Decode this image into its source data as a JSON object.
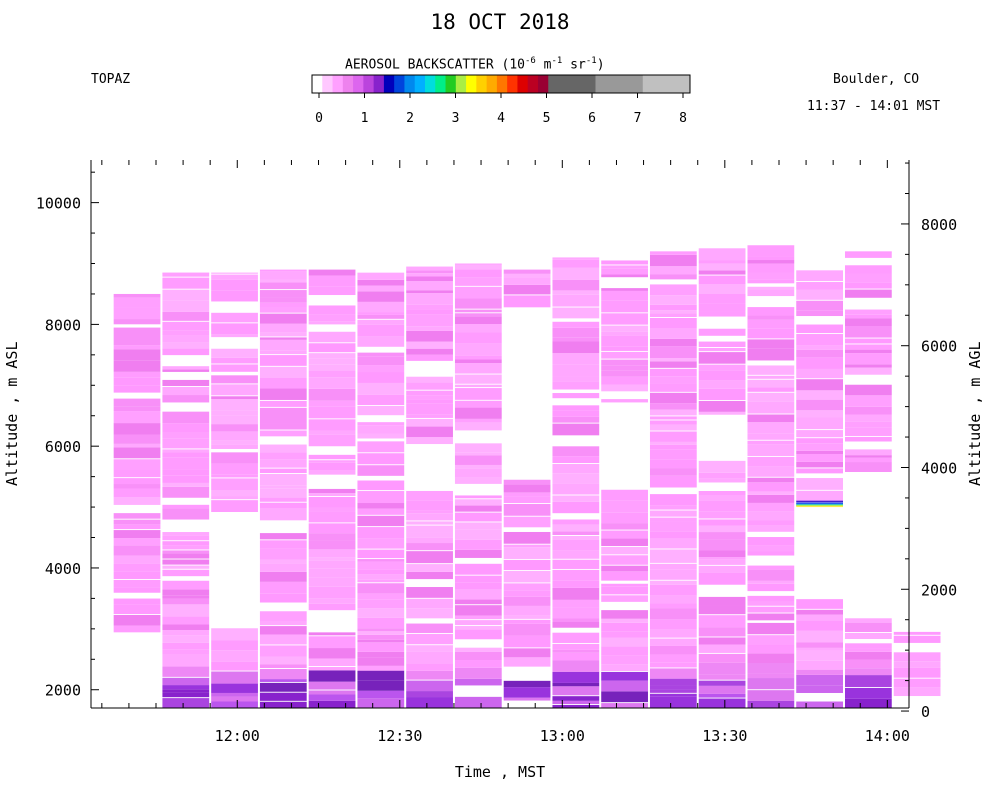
{
  "header": {
    "title": "18 OCT 2018",
    "instrument": "TOPAZ",
    "location": "Boulder, CO",
    "time_range": "11:37 - 14:01 MST"
  },
  "colorbar": {
    "title_prefix": "AEROSOL BACKSCATTER (10",
    "exp1": "-6",
    "mid1": " m",
    "exp2": "-1",
    "mid2": " sr",
    "exp3": "-1",
    "suffix": ")",
    "ticks": [
      "0",
      "1",
      "2",
      "3",
      "4",
      "5",
      "6",
      "7",
      "8"
    ],
    "colors": [
      "#ffffff",
      "#ffc8ff",
      "#ffa0ff",
      "#ee82ee",
      "#dd66ee",
      "#bb44dd",
      "#8822cc",
      "#0000bb",
      "#0044dd",
      "#0088ee",
      "#00b0ff",
      "#00dddd",
      "#00ee88",
      "#22cc22",
      "#aaee44",
      "#ffff00",
      "#ffd000",
      "#ffaa00",
      "#ff7700",
      "#ff3300",
      "#dd0000",
      "#bb0022",
      "#990033",
      "#666666",
      "#999999",
      "#c0c0c0"
    ]
  },
  "chart_data": {
    "type": "heatmap",
    "title": "18 OCT 2018",
    "xlabel": "Time , MST",
    "ylabel_left": "Altitude , m ASL",
    "ylabel_right": "Altitude , m AGL",
    "xlim": [
      "11:37",
      "14:01"
    ],
    "x_ticks": [
      "12:00",
      "12:30",
      "13:00",
      "13:30",
      "14:00"
    ],
    "ylim_left": [
      1700,
      10700
    ],
    "y_ticks_left": [
      2000,
      4000,
      6000,
      8000,
      10000
    ],
    "y_ticks_right": [
      0,
      2000,
      4000,
      6000,
      8000
    ],
    "ground_offset_m": 1650,
    "colorbar_range": [
      0,
      8
    ],
    "profiles": [
      {
        "start": "11:37",
        "end": "11:46",
        "top_m": 8500,
        "gap_bottom": [
          1700,
          2750
        ]
      },
      {
        "start": "11:46",
        "end": "11:55",
        "top_m": 8850,
        "gap_bottom": null
      },
      {
        "start": "11:55",
        "end": "12:04",
        "top_m": 8850,
        "gap_mid": [
          2950,
          4800
        ]
      },
      {
        "start": "12:04",
        "end": "12:13",
        "top_m": 8900,
        "gap_bottom": null
      },
      {
        "start": "12:13",
        "end": "12:22",
        "top_m": 8900,
        "gap_bottom": null
      },
      {
        "start": "12:22",
        "end": "12:31",
        "top_m": 8850,
        "gap_bottom": null
      },
      {
        "start": "12:31",
        "end": "12:40",
        "top_m": 8950,
        "gap_mid": [
          5200,
          6000
        ]
      },
      {
        "start": "12:40",
        "end": "12:49",
        "top_m": 9000,
        "gap_bottom": null
      },
      {
        "start": "12:49",
        "end": "12:58",
        "top_m": 8900,
        "gap_mid": [
          5400,
          8200
        ]
      },
      {
        "start": "12:58",
        "end": "13:07",
        "top_m": 9100,
        "gap_bottom": null
      },
      {
        "start": "13:07",
        "end": "13:16",
        "top_m": 9050,
        "gap_mid": [
          5200,
          6600
        ]
      },
      {
        "start": "13:16",
        "end": "13:25",
        "top_m": 9200,
        "gap_bottom": null
      },
      {
        "start": "13:25",
        "end": "13:34",
        "top_m": 9250,
        "gap_mid": [
          5600,
          6500
        ]
      },
      {
        "start": "13:34",
        "end": "13:43",
        "top_m": 9300,
        "gap_bottom": null
      },
      {
        "start": "13:43",
        "end": "13:52",
        "top_m": 8950,
        "gap_mid": [
          3400,
          5000
        ]
      },
      {
        "start": "13:52",
        "end": "14:01",
        "top_m": 9200,
        "gap_mid": [
          3150,
          5250
        ]
      },
      {
        "start": "14:01",
        "end": "14:10",
        "top_m": 2950,
        "gap_bottom": null
      }
    ],
    "notes": "Mostly light-magenta (low backscatter, ~0.1-0.5) with stronger purple layer near the surface (~0.6-1.0) below ~2300 m ASL; a thin high-value layer near 5000 m ASL around 13:40."
  }
}
